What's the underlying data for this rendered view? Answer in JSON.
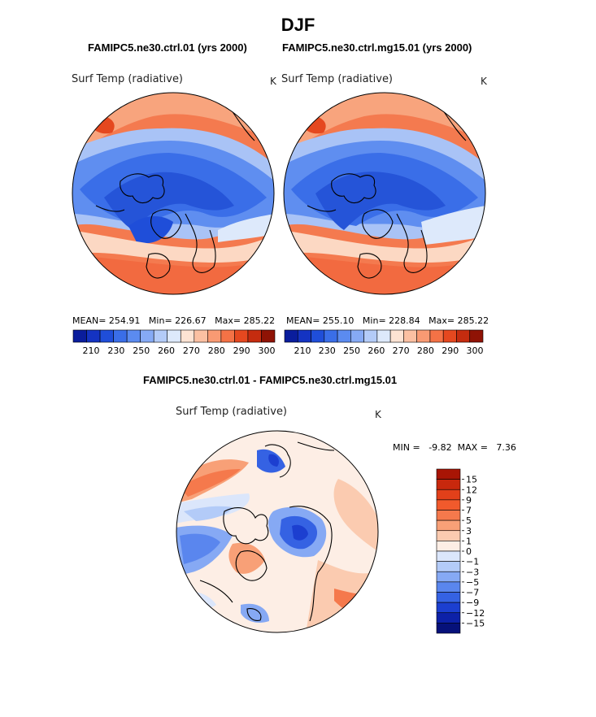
{
  "title": "DJF",
  "panels": [
    {
      "subtitle": "FAMIPC5.ne30.ctrl.01 (yrs 2000)",
      "variable": "Surf Temp (radiative)",
      "unit": "K",
      "mean_label": "MEAN=",
      "mean": "254.91",
      "min_label": "Min=",
      "min": "226.67",
      "max_label": "Max=",
      "max": "285.22"
    },
    {
      "subtitle": "FAMIPC5.ne30.ctrl.mg15.01 (yrs 2000)",
      "variable": "Surf Temp (radiative)",
      "unit": "K",
      "mean_label": "MEAN=",
      "mean": "255.10",
      "min_label": "Min=",
      "min": "228.84",
      "max_label": "Max=",
      "max": "285.22"
    }
  ],
  "colorbar_top": {
    "ticks": [
      "210",
      "230",
      "250",
      "260",
      "270",
      "280",
      "290",
      "300"
    ],
    "colors": [
      "#0a1d9c",
      "#1433c2",
      "#1f4ed9",
      "#3a6ee8",
      "#5b8bf0",
      "#86aaf5",
      "#b3cbf8",
      "#dde9fb",
      "#fde3d3",
      "#fbc0a2",
      "#f99a73",
      "#f47246",
      "#e5481f",
      "#c52c0f",
      "#8f1305"
    ]
  },
  "diff": {
    "subtitle": "FAMIPC5.ne30.ctrl.01 - FAMIPC5.ne30.ctrl.mg15.01",
    "variable": "Surf Temp (radiative)",
    "unit": "K",
    "min_label": "MIN =",
    "min": "-9.82",
    "max_label": "MAX =",
    "max": "7.36",
    "levels": [
      "15",
      "12",
      "9",
      "7",
      "5",
      "3",
      "1",
      "0",
      "−1",
      "−3",
      "−5",
      "−7",
      "−9",
      "−12",
      "−15"
    ],
    "colors": [
      "#a81505",
      "#c8280d",
      "#e2401a",
      "#f15a2c",
      "#f5794c",
      "#f8a077",
      "#fbcbb0",
      "#fdeee5",
      "#dbe6fb",
      "#b3cbf8",
      "#86a9f4",
      "#5a86ee",
      "#3562e3",
      "#1c3fd0",
      "#0d21a8",
      "#06117a"
    ]
  }
}
